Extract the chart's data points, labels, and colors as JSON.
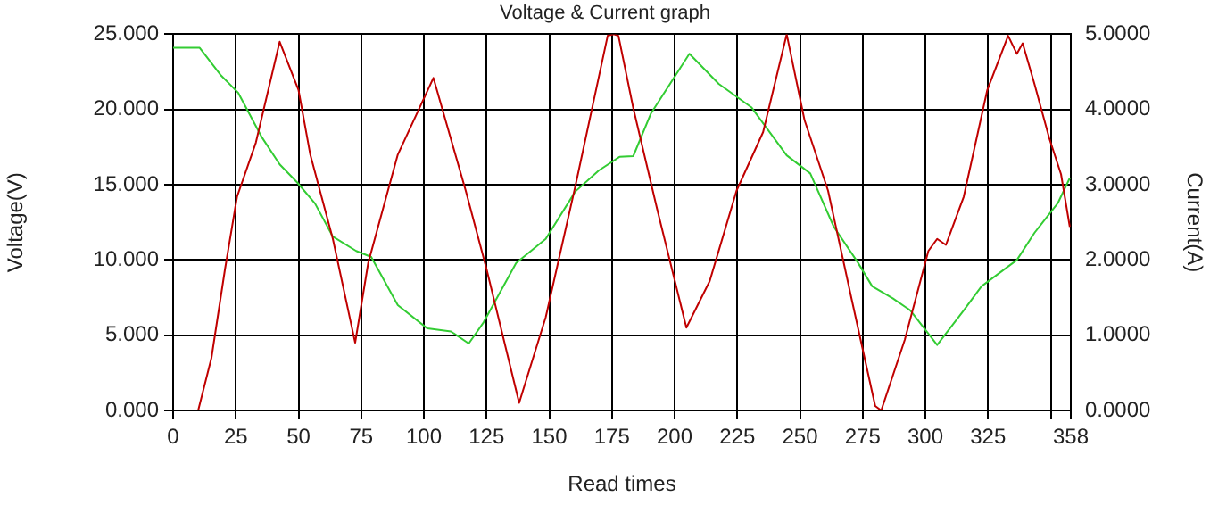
{
  "chart_data": {
    "type": "line",
    "title": "Voltage & Current graph",
    "xlabel": "Read times",
    "ylabel": "Voltage(V)",
    "y2label": "Current(A)",
    "xlim": [
      0,
      358
    ],
    "xticks": [
      0,
      25,
      50,
      75,
      100,
      125,
      150,
      175,
      200,
      225,
      250,
      275,
      300,
      325,
      {
        "value": 350,
        "label": null
      },
      358
    ],
    "ylim": [
      0,
      25
    ],
    "yticks": [
      {
        "value": 0,
        "label": "0.000"
      },
      {
        "value": 5,
        "label": "5.000"
      },
      {
        "value": 10,
        "label": "10.000"
      },
      {
        "value": 15,
        "label": "15.000"
      },
      {
        "value": 20,
        "label": "20.000"
      },
      {
        "value": 25,
        "label": "25.000"
      }
    ],
    "y2lim": [
      0,
      5
    ],
    "y2ticks": [
      {
        "value": 0,
        "label": "0.0000"
      },
      {
        "value": 1,
        "label": "1.0000"
      },
      {
        "value": 2,
        "label": "2.0000"
      },
      {
        "value": 3,
        "label": "3.0000"
      },
      {
        "value": 4,
        "label": "4.0000"
      },
      {
        "value": 5,
        "label": "5.0000"
      }
    ],
    "grid": true,
    "legend": false,
    "marker": "none",
    "line_style": "solid",
    "series": [
      {
        "color": "#c00000",
        "x": [
          0,
          10,
          15.3,
          20.7,
          25.5,
          33,
          42.5,
          50,
          54.7,
          63.7,
          72.6,
          77.8,
          89.6,
          103.8,
          116.7,
          125,
          138,
          148.6,
          160.4,
          173.3,
          175.7,
          177.6,
          183.5,
          193,
          204.7,
          214,
          224.7,
          235.3,
          244.7,
          251.8,
          261.2,
          270.6,
          280,
          282.4,
          291.8,
          301.2,
          304.7,
          308.2,
          315.3,
          324.7,
          333,
          336.5,
          338.8,
          343.5,
          349.4,
          354.1,
          357.6
        ],
        "values": [
          0,
          0,
          3.5,
          9.4,
          14.2,
          17.8,
          24.5,
          21.3,
          17,
          11.4,
          4.5,
          9.8,
          17,
          22.1,
          14.6,
          9.4,
          0.5,
          6.2,
          14.9,
          24.9,
          25,
          24.9,
          20.1,
          13.4,
          5.5,
          8.6,
          14.6,
          18.5,
          25,
          19.3,
          14.6,
          7.4,
          0.3,
          0,
          4.7,
          10.6,
          11.4,
          11,
          14.2,
          21.3,
          24.9,
          23.7,
          24.4,
          21.7,
          18.1,
          15.7,
          12.2
        ]
      },
      {
        "color": "#33cc33",
        "axis": "y2",
        "x": [
          0,
          10.6,
          18.9,
          26,
          35.4,
          42.5,
          49.5,
          56.6,
          63.7,
          73,
          79,
          89.6,
          101.4,
          110.8,
          117.9,
          123.8,
          136.8,
          148.6,
          160.4,
          169.8,
          178,
          183.5,
          190.6,
          205.9,
          217.6,
          230.6,
          244.7,
          254.1,
          263.5,
          273,
          278.8,
          287,
          294,
          304.7,
          315.3,
          322.4,
          336.5,
          343.5,
          352.9,
          357.6
        ],
        "values": [
          4.82,
          4.82,
          4.46,
          4.22,
          3.63,
          3.27,
          3.03,
          2.75,
          2.31,
          2.12,
          2.04,
          1.4,
          1.09,
          1.05,
          0.89,
          1.17,
          1.96,
          2.28,
          2.91,
          3.19,
          3.37,
          3.38,
          3.95,
          4.74,
          4.34,
          4.03,
          3.39,
          3.15,
          2.44,
          1.97,
          1.65,
          1.49,
          1.33,
          0.87,
          1.33,
          1.65,
          2,
          2.36,
          2.76,
          3.09
        ]
      }
    ]
  }
}
